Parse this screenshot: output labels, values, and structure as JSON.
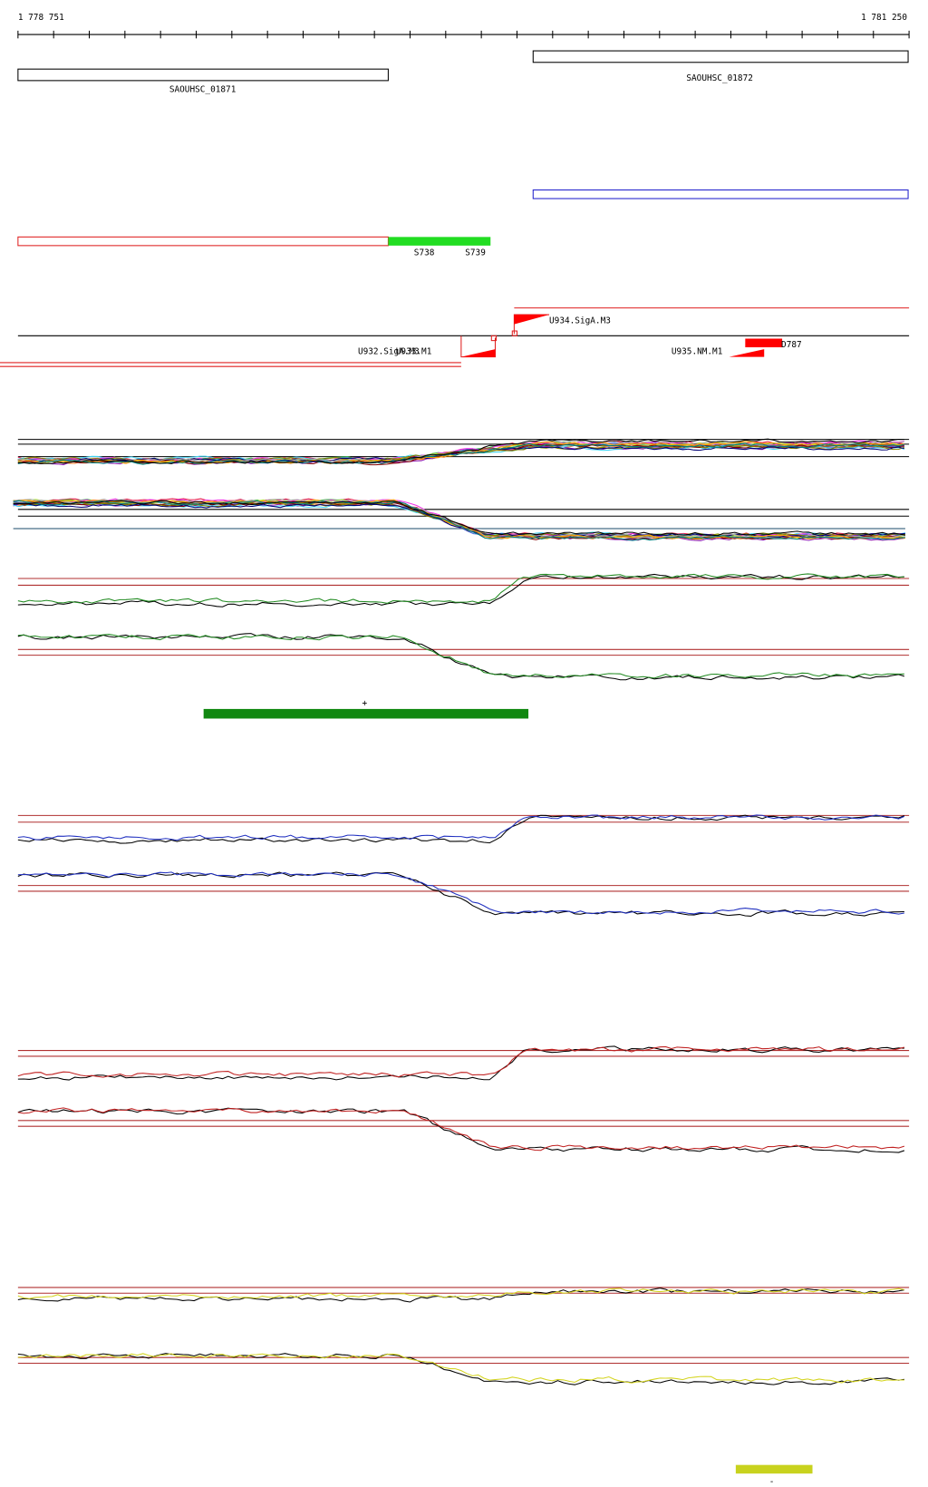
{
  "ruler": {
    "start": "1 778 751",
    "end": "1 781 250"
  },
  "genes": [
    {
      "label": "SAOUHSC_01871"
    },
    {
      "label": "SAOUHSC_01872"
    }
  ],
  "segments": [
    "S738",
    "S739"
  ],
  "promoters": [
    "U934.SigA.M3",
    "U932.SigA.M3",
    "U933.M1",
    "U935.NM.M1"
  ],
  "terminator": "D787",
  "strand_marks": [
    "+",
    "-"
  ]
}
